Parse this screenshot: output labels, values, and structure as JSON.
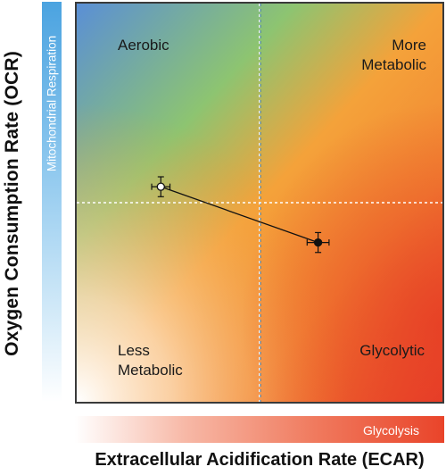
{
  "chart_data": {
    "type": "scatter",
    "xlabel": "Extracellular Acidification Rate (ECAR)",
    "ylabel": "Oxygen Consumption Rate (OCR)",
    "x_bar_label": "Glycolysis",
    "y_bar_label": "Mitochondrial Respiration",
    "xlim": [
      0,
      100
    ],
    "ylim": [
      0,
      100
    ],
    "quadrant_labels": {
      "top_left": "Aerobic",
      "top_right": "More Metabolic",
      "bottom_left": "Less Metabolic",
      "bottom_right": "Glycolytic"
    },
    "points": [
      {
        "x": 23,
        "y": 54,
        "xerr": 2.5,
        "yerr": 2.5,
        "fill": "open"
      },
      {
        "x": 66,
        "y": 40,
        "xerr": 3,
        "yerr": 2.5,
        "fill": "filled"
      }
    ],
    "connect_points": true,
    "reference_lines": {
      "x": 50,
      "y": 50
    },
    "grid": false,
    "colors": {
      "aerobic": "#5a8fd6",
      "respiration_green": "#8dc471",
      "metabolic": "#f39a32",
      "glycolytic": "#e8402a",
      "axis": "#3a3a3a"
    }
  }
}
